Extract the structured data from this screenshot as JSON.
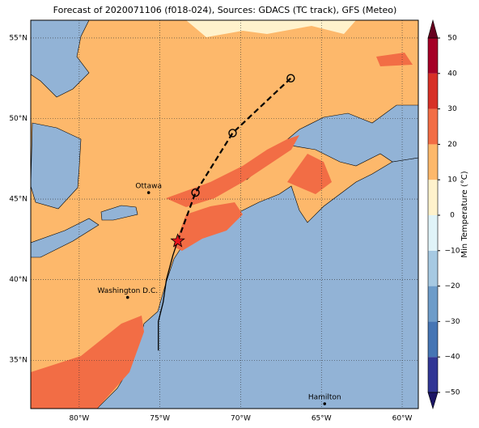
{
  "map": {
    "title": "Forecast of 2020071106 (f018-024), Sources: GDACS (TC track), GFS (Meteo)",
    "xlim": [
      -83,
      -59
    ],
    "ylim": [
      32.0,
      56.1
    ],
    "xticks": [
      {
        "value": -80,
        "label": "80°W"
      },
      {
        "value": -75,
        "label": "75°W"
      },
      {
        "value": -70,
        "label": "70°W"
      },
      {
        "value": -65,
        "label": "65°W"
      },
      {
        "value": -60,
        "label": "60°W"
      }
    ],
    "yticks": [
      {
        "value": 35,
        "label": "35°N"
      },
      {
        "value": 40,
        "label": "40°N"
      },
      {
        "value": 45,
        "label": "45°N"
      },
      {
        "value": 50,
        "label": "50°N"
      },
      {
        "value": 55,
        "label": "55°N"
      }
    ],
    "grid": true,
    "cities": [
      {
        "name": "Ottawa",
        "lon": -75.7,
        "lat": 45.4
      },
      {
        "name": "Washington D.C.",
        "lon": -77.0,
        "lat": 38.9
      },
      {
        "name": "Hamilton",
        "lon": -64.8,
        "lat": 32.3
      }
    ],
    "track": {
      "past": {
        "lon": [
          -75.1,
          -75.1,
          -74.8,
          -74.6,
          -74.2,
          -73.9
        ],
        "lat": [
          35.6,
          37.4,
          38.6,
          40.0,
          41.5,
          42.4
        ]
      },
      "forecast": {
        "lon": [
          -73.9,
          -72.8,
          -70.5,
          -66.9
        ],
        "lat": [
          42.4,
          45.4,
          49.1,
          52.5
        ]
      },
      "current": {
        "lon": -73.9,
        "lat": 42.4
      }
    },
    "colorbar": {
      "label": "Min Temperature (°C)",
      "lim": [
        -50,
        50
      ],
      "ticks": [
        {
          "value": -50,
          "label": "−50"
        },
        {
          "value": -40,
          "label": "−40"
        },
        {
          "value": -30,
          "label": "−30"
        },
        {
          "value": -20,
          "label": "−20"
        },
        {
          "value": -10,
          "label": "−10"
        },
        0,
        10,
        20,
        30,
        40,
        50
      ],
      "levels": [
        -50,
        -40,
        -30,
        -20,
        -10,
        0,
        10,
        20,
        30,
        40,
        50
      ],
      "colors": [
        "#313695",
        "#4575b4",
        "#6d9cc9",
        "#a6c9e2",
        "#e0f3f8",
        "#fff2cc",
        "#fdb86b",
        "#f26d45",
        "#d73027",
        "#a50026"
      ],
      "under": "#1b1464",
      "over": "#67001f"
    }
  }
}
